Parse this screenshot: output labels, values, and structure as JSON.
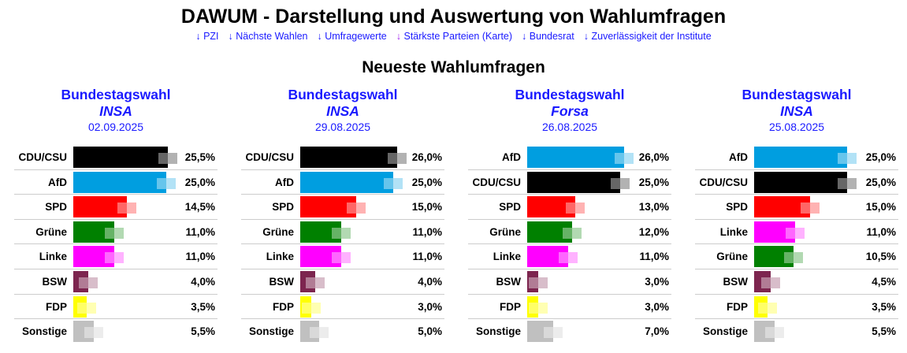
{
  "title": "DAWUM - Darstellung und Auswertung von Wahlumfragen",
  "nav": [
    {
      "label": "PZI",
      "visited": false
    },
    {
      "label": "Nächste Wahlen",
      "visited": false
    },
    {
      "label": "Umfragewerte",
      "visited": false
    },
    {
      "label": "Stärkste Parteien (Karte)",
      "visited": true
    },
    {
      "label": "Bundesrat",
      "visited": false
    },
    {
      "label": "Zuverlässigkeit der Institute",
      "visited": false
    }
  ],
  "nav_arrow": "↓",
  "section_title": "Neueste Wahlumfragen",
  "colors": {
    "CDU/CSU": "#000000",
    "AfD": "#009ee0",
    "SPD": "#ff0000",
    "Grüne": "#008000",
    "Linke": "#ff00ff",
    "BSW": "#7d254f",
    "FDP": "#ffff00",
    "Sonstige": "#c0c0c0"
  },
  "polls": [
    {
      "election": "Bundestagswahl",
      "institute": "INSA",
      "date": "02.09.2025",
      "results": [
        [
          "CDU/CSU",
          25.5,
          "25,5%"
        ],
        [
          "AfD",
          25.0,
          "25,0%"
        ],
        [
          "SPD",
          14.5,
          "14,5%"
        ],
        [
          "Grüne",
          11.0,
          "11,0%"
        ],
        [
          "Linke",
          11.0,
          "11,0%"
        ],
        [
          "BSW",
          4.0,
          "4,0%"
        ],
        [
          "FDP",
          3.5,
          "3,5%"
        ],
        [
          "Sonstige",
          5.5,
          "5,5%"
        ]
      ]
    },
    {
      "election": "Bundestagswahl",
      "institute": "INSA",
      "date": "29.08.2025",
      "results": [
        [
          "CDU/CSU",
          26.0,
          "26,0%"
        ],
        [
          "AfD",
          25.0,
          "25,0%"
        ],
        [
          "SPD",
          15.0,
          "15,0%"
        ],
        [
          "Grüne",
          11.0,
          "11,0%"
        ],
        [
          "Linke",
          11.0,
          "11,0%"
        ],
        [
          "BSW",
          4.0,
          "4,0%"
        ],
        [
          "FDP",
          3.0,
          "3,0%"
        ],
        [
          "Sonstige",
          5.0,
          "5,0%"
        ]
      ]
    },
    {
      "election": "Bundestagswahl",
      "institute": "Forsa",
      "date": "26.08.2025",
      "results": [
        [
          "AfD",
          26.0,
          "26,0%"
        ],
        [
          "CDU/CSU",
          25.0,
          "25,0%"
        ],
        [
          "SPD",
          13.0,
          "13,0%"
        ],
        [
          "Grüne",
          12.0,
          "12,0%"
        ],
        [
          "Linke",
          11.0,
          "11,0%"
        ],
        [
          "BSW",
          3.0,
          "3,0%"
        ],
        [
          "FDP",
          3.0,
          "3,0%"
        ],
        [
          "Sonstige",
          7.0,
          "7,0%"
        ]
      ]
    },
    {
      "election": "Bundestagswahl",
      "institute": "INSA",
      "date": "25.08.2025",
      "results": [
        [
          "AfD",
          25.0,
          "25,0%"
        ],
        [
          "CDU/CSU",
          25.0,
          "25,0%"
        ],
        [
          "SPD",
          15.0,
          "15,0%"
        ],
        [
          "Linke",
          11.0,
          "11,0%"
        ],
        [
          "Grüne",
          10.5,
          "10,5%"
        ],
        [
          "BSW",
          4.5,
          "4,5%"
        ],
        [
          "FDP",
          3.5,
          "3,5%"
        ],
        [
          "Sonstige",
          5.5,
          "5,5%"
        ]
      ]
    }
  ]
}
